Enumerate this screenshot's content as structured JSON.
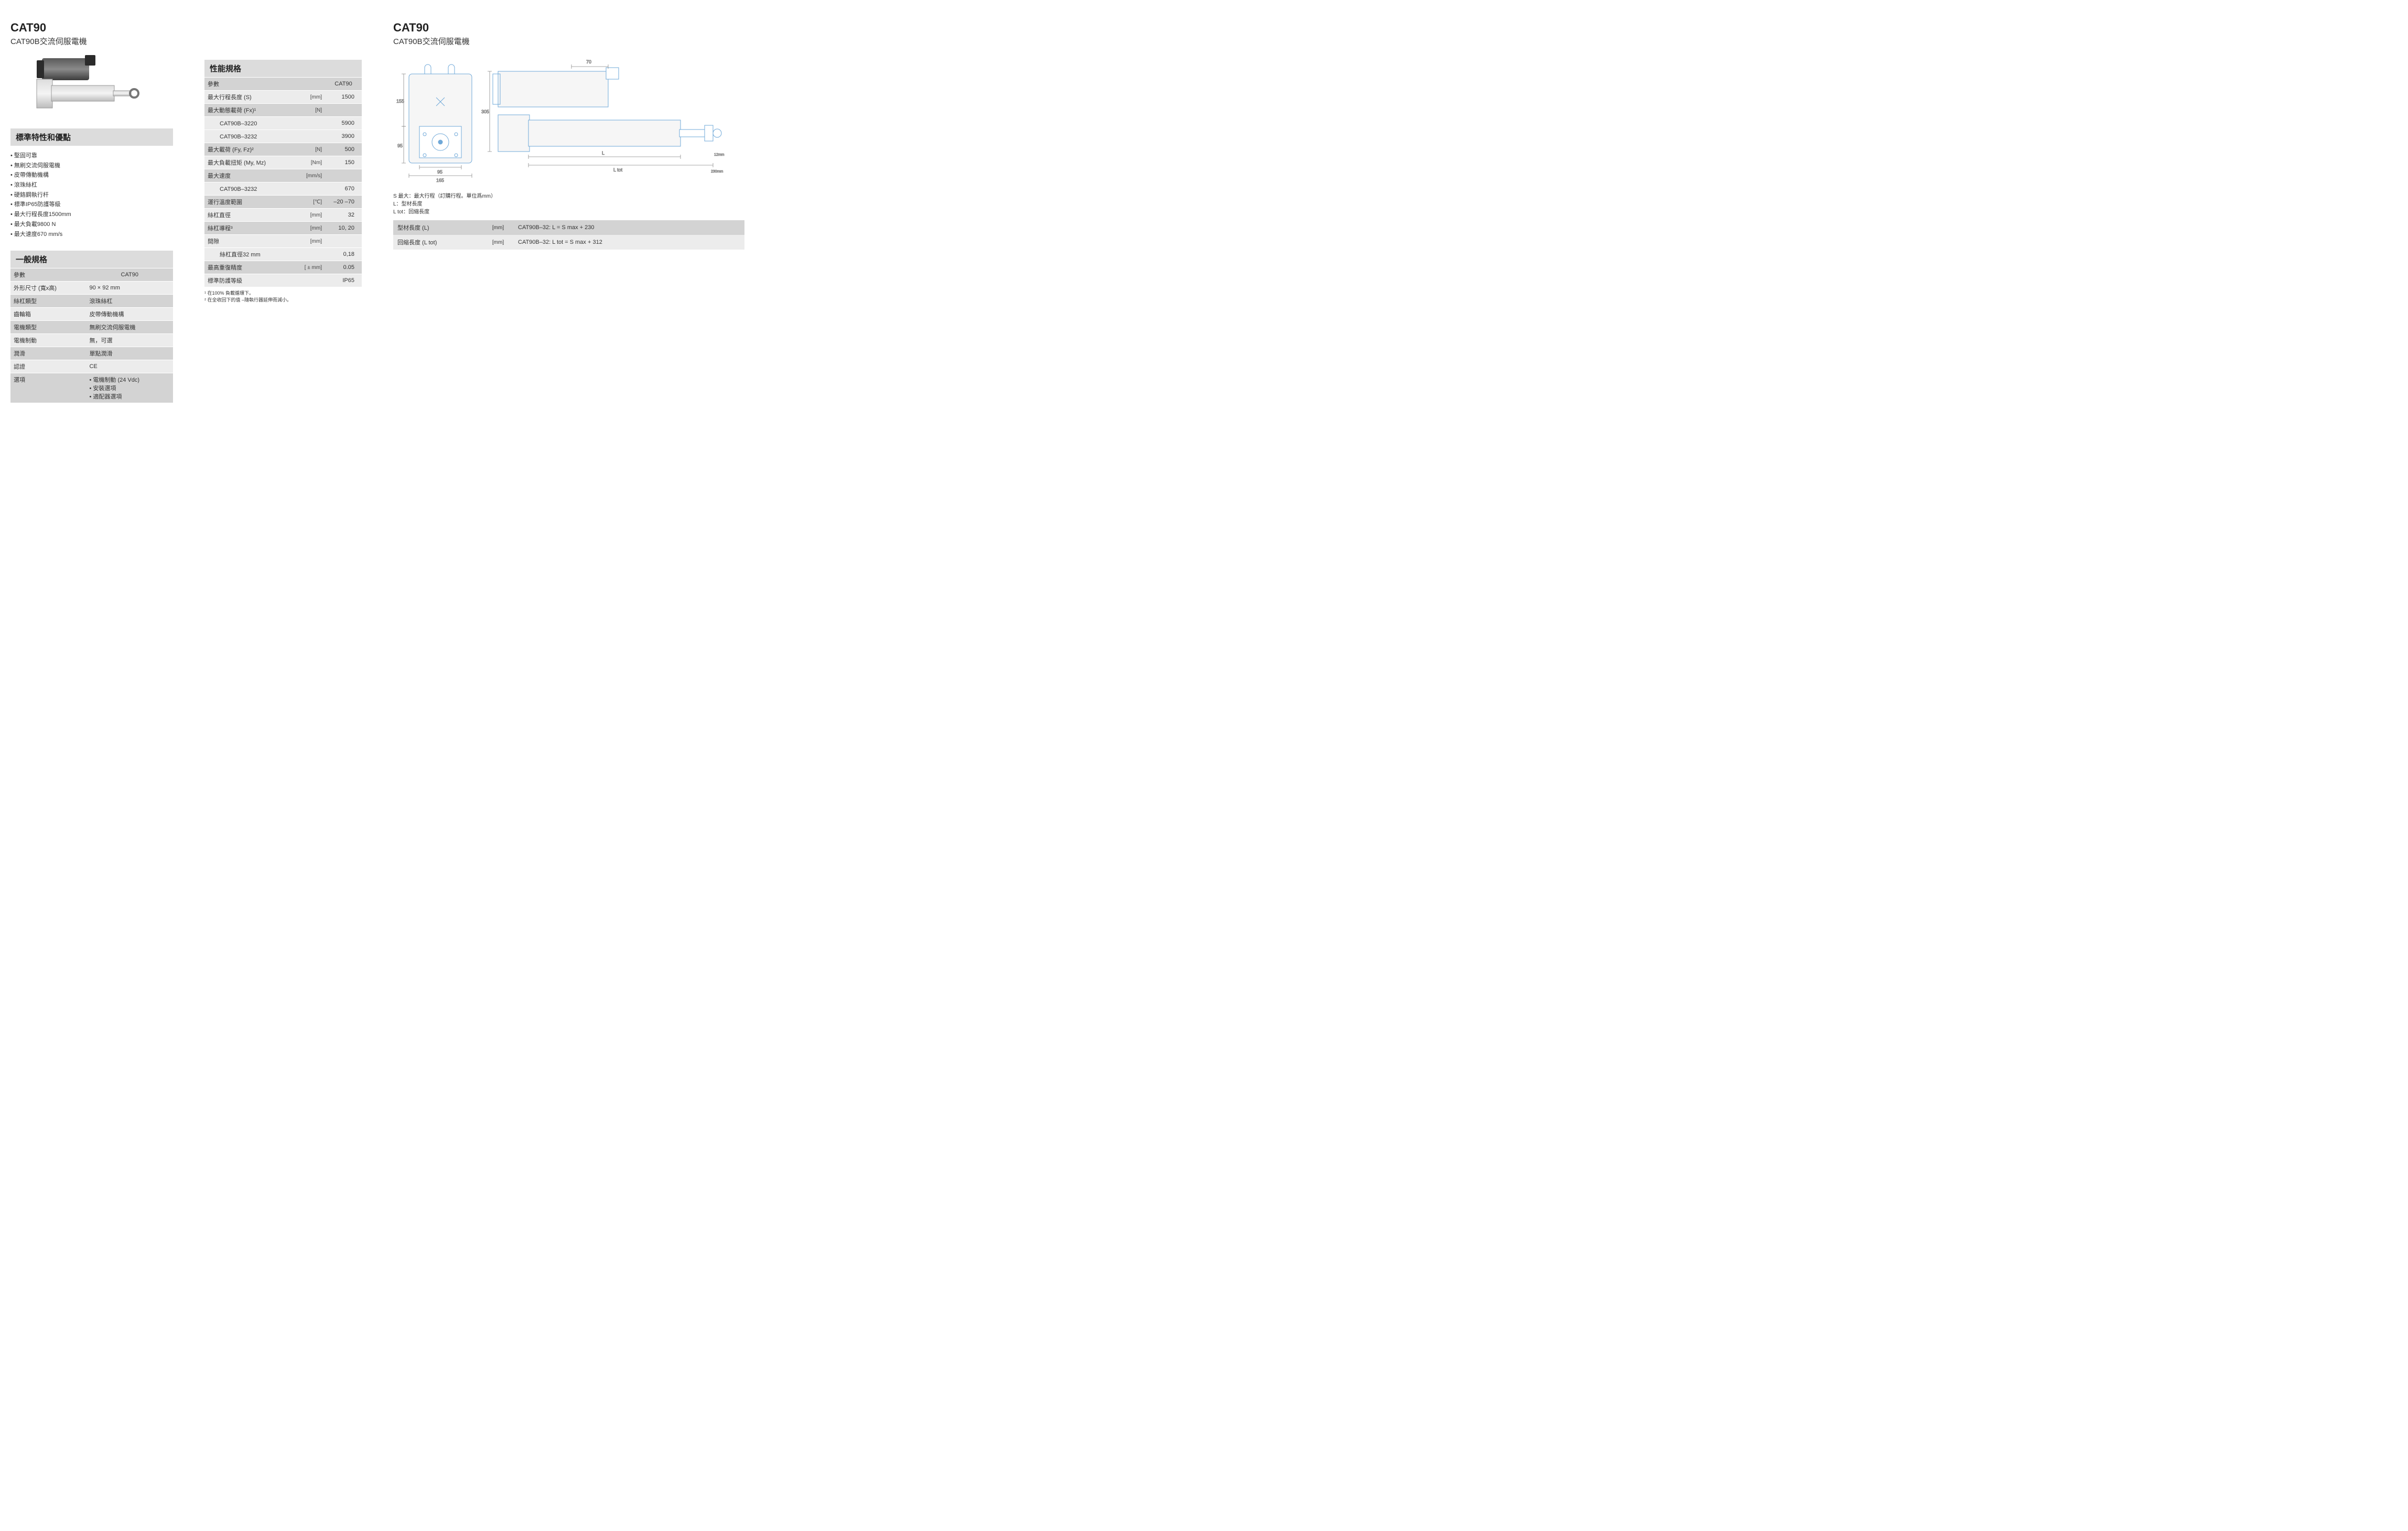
{
  "header": {
    "model": "CAT90",
    "subtitle": "CAT90B交流伺服電機"
  },
  "features": {
    "title": "標準特性和優點",
    "items": [
      "堅固可靠",
      "無刷交流伺服電機",
      "皮帶傳動機構",
      "滾珠絲杠",
      "硬鉻鋼執行杆",
      "標準IP65防護等級",
      "最大行程長度1500mm",
      "最大負載9800 N",
      "最大速度670 mm/s"
    ]
  },
  "general": {
    "title": "一般規格",
    "header_param": "參數",
    "header_val": "CAT90",
    "rows": [
      {
        "p": "外形尺寸 (寬x高)",
        "v": "90 × 92 mm"
      },
      {
        "p": "絲杠類型",
        "v": "滾珠絲杠"
      },
      {
        "p": "齒輪箱",
        "v": "皮帶傳動機構"
      },
      {
        "p": "電機類型",
        "v": "無刷交流伺服電機"
      },
      {
        "p": "電機制動",
        "v": "無，可選"
      },
      {
        "p": "潤滑",
        "v": "單點潤滑"
      },
      {
        "p": "認證",
        "v": "CE"
      }
    ],
    "options_label": "選項",
    "options": [
      "電機制動 (24 Vdc)",
      "安裝選項",
      "適配器選項"
    ]
  },
  "perf": {
    "title": "性能規格",
    "header_param": "參數",
    "header_val": "CAT90",
    "rows": [
      {
        "p": "最大行程長度 (S)",
        "u": "[mm]",
        "v": "1500",
        "shade": "light"
      },
      {
        "p": "最大動態載荷 (Fx)¹",
        "u": "[N]",
        "v": "",
        "shade": "dark"
      },
      {
        "p": "　CAT90B–3220",
        "u": "",
        "v": "5900",
        "shade": "light",
        "sub": true
      },
      {
        "p": "　CAT90B–3232",
        "u": "",
        "v": "3900",
        "shade": "light",
        "sub": true
      },
      {
        "p": "最大載荷 (Fy, Fz)²",
        "u": "[N]",
        "v": "500",
        "shade": "dark"
      },
      {
        "p": "最大負載扭矩 (My, Mz)",
        "u": "[Nm]",
        "v": "150",
        "shade": "light"
      },
      {
        "p": "最大速度",
        "u": "[mm/s]",
        "v": "",
        "shade": "dark"
      },
      {
        "p": "　CAT90B–3232",
        "u": "",
        "v": "670",
        "shade": "light",
        "sub": true
      },
      {
        "p": "運行溫度範圍",
        "u": "[℃]",
        "v": "–20 –70",
        "shade": "dark"
      },
      {
        "p": "絲杠直徑",
        "u": "[mm]",
        "v": "32",
        "shade": "light"
      },
      {
        "p": "絲杠導程³",
        "u": "[mm]",
        "v": "10, 20",
        "shade": "dark"
      },
      {
        "p": "間隙",
        "u": "[mm]",
        "v": "",
        "shade": "light"
      },
      {
        "p": "　絲杠直徑32 mm",
        "u": "",
        "v": "0,18",
        "shade": "light",
        "sub": true
      },
      {
        "p": "最高重復精度",
        "u": "[ ± mm]",
        "v": "0.05",
        "shade": "dark"
      },
      {
        "p": "標準防護等級",
        "u": "",
        "v": "IP65",
        "shade": "light"
      }
    ],
    "footnotes": [
      "¹ 在100% 負載循環下。",
      "² 在全收回下的值 –隨執行器延伸而減小。"
    ]
  },
  "dimensions": {
    "legend": [
      "S 最大：最大行程（訂購行程。單位爲mm）",
      "L：型材長度",
      "L tot：回縮長度"
    ],
    "rows": [
      {
        "p": "型材長度 (L)",
        "u": "[mm]",
        "v": "CAT90B–32: L = S max + 230",
        "shade": "dark"
      },
      {
        "p": "回縮長度 (L tot)",
        "u": "[mm]",
        "v": "CAT90B–32: L tot = S max + 312",
        "shade": "light"
      }
    ],
    "labels": {
      "w70": "70",
      "h155": "155",
      "h95": "95",
      "w95": "95",
      "w165": "165",
      "h305": "305",
      "L": "L",
      "Ltot": "L tot",
      "r12": "12mm",
      "r230": "230mm"
    }
  },
  "colors": {
    "row_dark": "#d3d3d3",
    "row_light": "#ececec",
    "text": "#333333",
    "line": "#6fa8d8",
    "line_gray": "#8a8a8a"
  }
}
